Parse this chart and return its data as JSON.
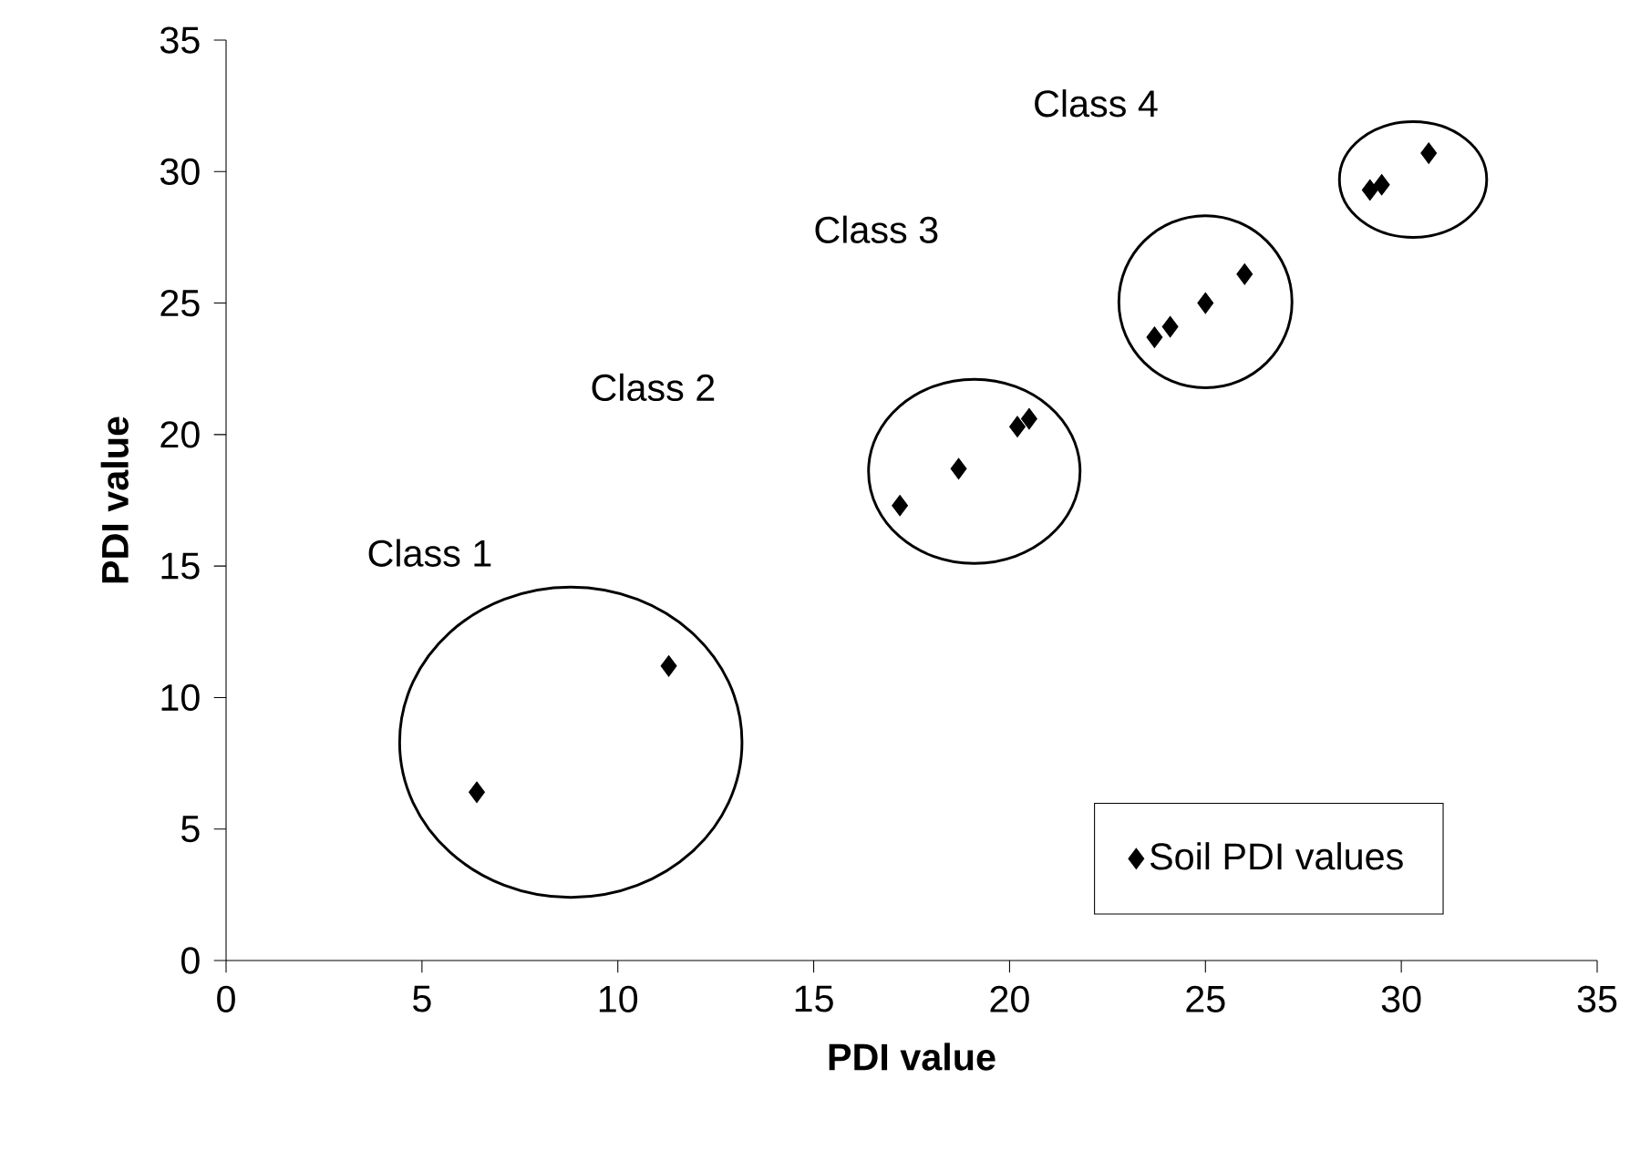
{
  "chart_data": {
    "type": "scatter",
    "xlabel": "PDI value",
    "ylabel": "PDI value",
    "xlim": [
      0,
      35
    ],
    "ylim": [
      0,
      35
    ],
    "xticks": [
      0,
      5,
      10,
      15,
      20,
      25,
      30,
      35
    ],
    "yticks": [
      0,
      5,
      10,
      15,
      20,
      25,
      30,
      35
    ],
    "grid": false,
    "legend": "bottom right",
    "marker": "diamond",
    "series": [
      {
        "name": "Soil PDI values",
        "color": "#000000",
        "x": [
          6.4,
          11.3,
          17.2,
          18.7,
          20.2,
          20.5,
          23.7,
          24.1,
          25.0,
          26.0,
          29.2,
          29.5,
          30.7
        ],
        "values": [
          6.4,
          11.2,
          17.3,
          18.7,
          20.3,
          20.6,
          23.7,
          24.1,
          25.0,
          26.1,
          29.3,
          29.5,
          30.7
        ]
      }
    ],
    "annotations": [
      "Class 1",
      "Class 2",
      "Class 3",
      "Class 4"
    ]
  }
}
